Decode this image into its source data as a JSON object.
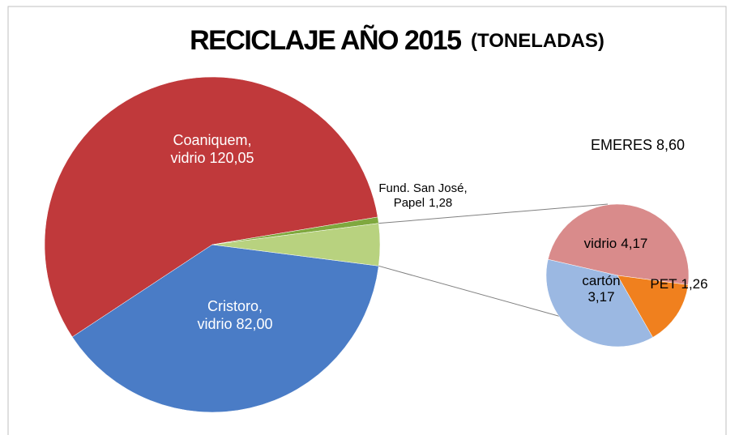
{
  "chart_data": {
    "type": "pie_of_pie",
    "title": "RECICLAJE AÑO 2015",
    "subtitle": "(TONELADAS)",
    "categories": [
      "Coaniquem, vidrio",
      "Cristoro, vidrio",
      "Fund. San José, Papel",
      "EMERES"
    ],
    "values": [
      120.05,
      82.0,
      1.28,
      8.6
    ],
    "value_labels": [
      "120,05",
      "82,00",
      "1,28",
      "8,60"
    ],
    "colors": [
      "#c0393b",
      "#4a7cc6",
      "#7fa83e",
      "#b8d27f"
    ],
    "secondary": {
      "categories": [
        "vidrio",
        "PET",
        "cartón"
      ],
      "values": [
        4.17,
        1.26,
        3.17
      ],
      "value_labels": [
        "4,17",
        "1,26",
        "3,17"
      ],
      "colors": [
        "#d98b8b",
        "#f0801e",
        "#9bb8e2"
      ]
    }
  }
}
